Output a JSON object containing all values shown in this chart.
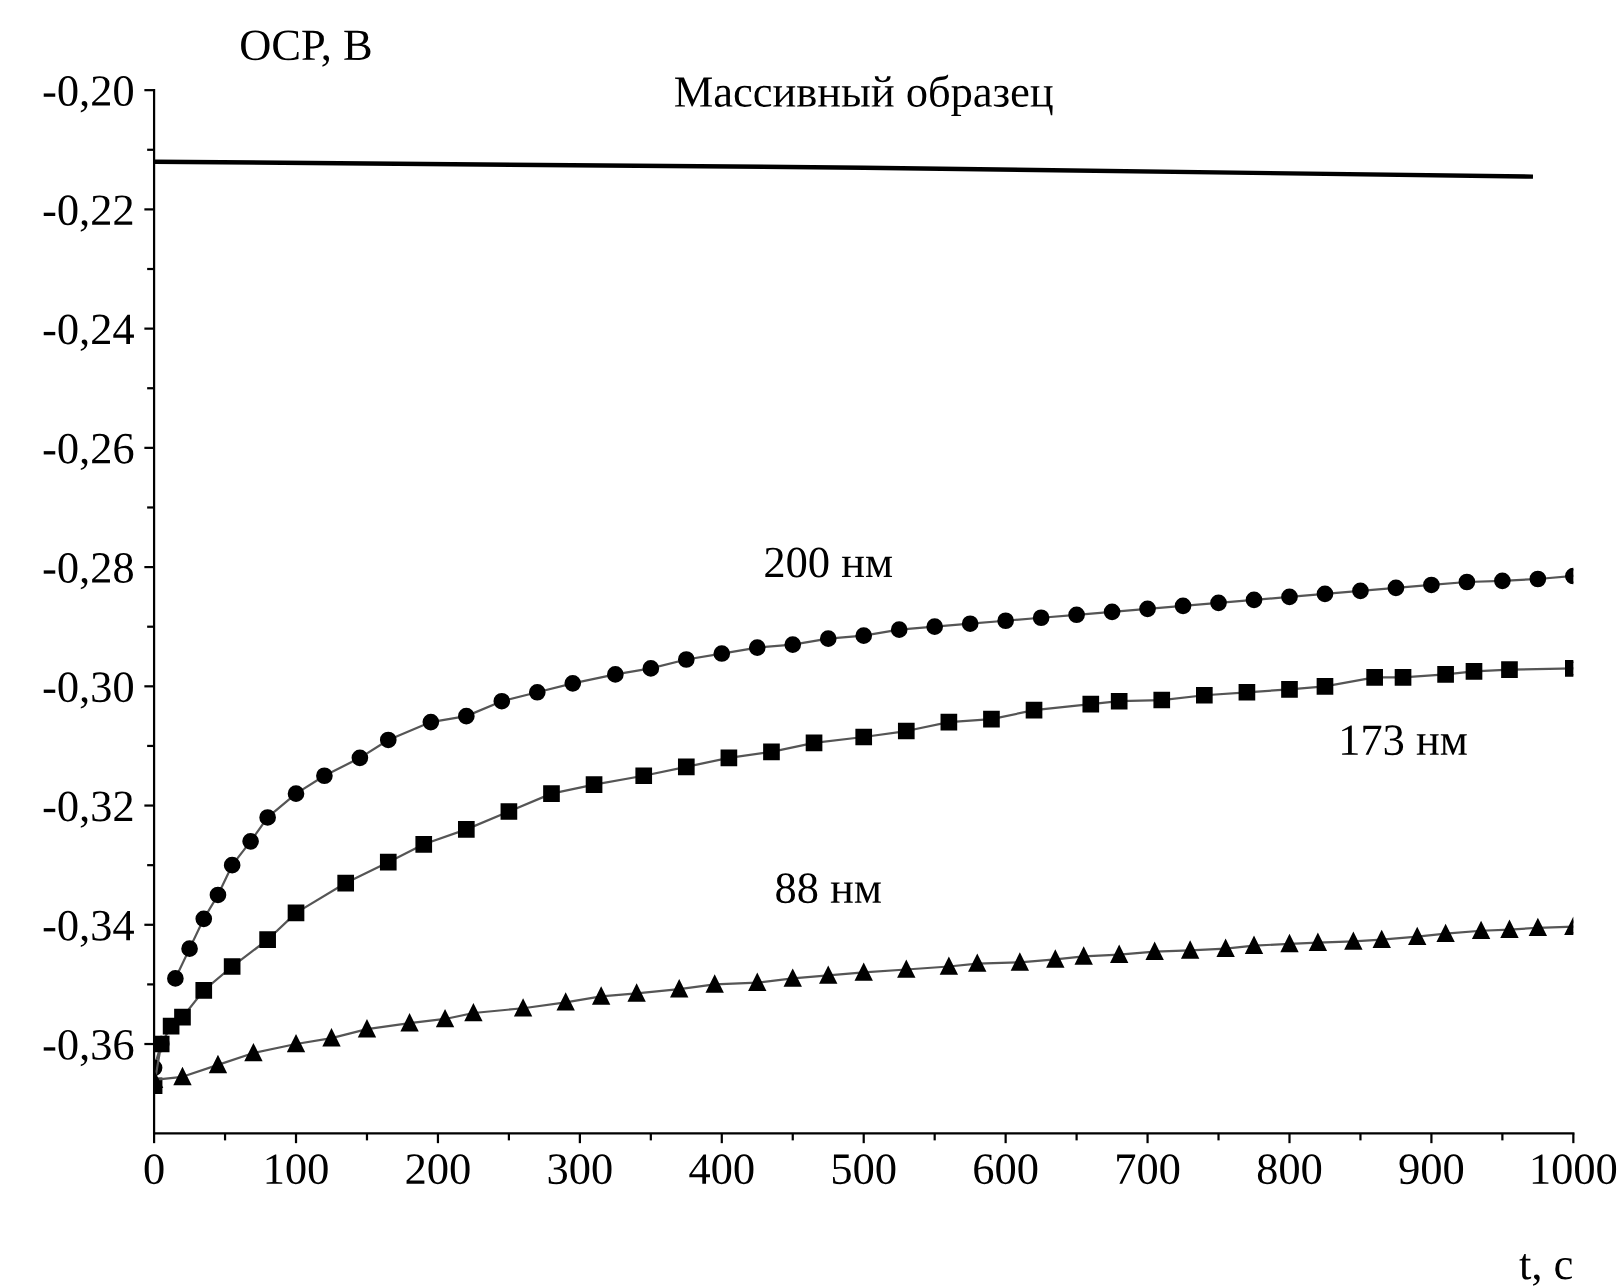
{
  "chart_data": {
    "type": "line",
    "xlabel": "t, с",
    "ylabel": "OCP, В",
    "xlim": [
      0,
      1000
    ],
    "ylim": [
      -0.375,
      -0.2
    ],
    "xticks": [
      0,
      {
        "value": 50,
        "label": null
      },
      100,
      {
        "value": 150,
        "label": null
      },
      200,
      {
        "value": 250,
        "label": null
      },
      300,
      {
        "value": 350,
        "label": null
      },
      400,
      {
        "value": 450,
        "label": null
      },
      500,
      {
        "value": 550,
        "label": null
      },
      600,
      {
        "value": 650,
        "label": null
      },
      700,
      {
        "value": 750,
        "label": null
      },
      800,
      {
        "value": 850,
        "label": null
      },
      900,
      {
        "value": 950,
        "label": null
      },
      1000
    ],
    "yticks": [
      {
        "value": -0.36,
        "label": "-0,36"
      },
      {
        "value": -0.35,
        "label": null
      },
      {
        "value": -0.34,
        "label": "-0,34"
      },
      {
        "value": -0.33,
        "label": null
      },
      {
        "value": -0.32,
        "label": "-0,32"
      },
      {
        "value": -0.31,
        "label": null
      },
      {
        "value": -0.3,
        "label": "-0,30"
      },
      {
        "value": -0.29,
        "label": null
      },
      {
        "value": -0.28,
        "label": "-0,28"
      },
      {
        "value": -0.27,
        "label": null
      },
      {
        "value": -0.26,
        "label": "-0,26"
      },
      {
        "value": -0.25,
        "label": null
      },
      {
        "value": -0.24,
        "label": "-0,24"
      },
      {
        "value": -0.23,
        "label": null
      },
      {
        "value": -0.22,
        "label": "-0,22"
      },
      {
        "value": -0.21,
        "label": null
      },
      {
        "value": -0.2,
        "label": "-0,20"
      }
    ],
    "grid": false,
    "series": [
      {
        "name": "Массивный образец",
        "color": "#000000",
        "marker": "none",
        "x": [
          0,
          500,
          970
        ],
        "values": [
          -0.212,
          -0.213,
          -0.2145
        ]
      },
      {
        "name": "200 нм",
        "color": "#000000",
        "marker": "circle",
        "x": [
          0,
          5,
          10,
          15,
          25,
          35,
          45,
          55,
          68,
          80,
          100,
          120,
          145,
          165,
          195,
          220,
          245,
          270,
          295,
          325,
          350,
          375,
          400,
          425,
          450,
          475,
          500,
          525,
          550,
          575,
          600,
          625,
          650,
          675,
          700,
          725,
          750,
          775,
          800,
          825,
          850,
          875,
          900,
          925,
          950,
          975,
          1000
        ],
        "values": [
          -0.364,
          -0.36,
          null,
          -0.349,
          -0.344,
          -0.339,
          -0.335,
          -0.33,
          -0.326,
          -0.322,
          -0.318,
          -0.315,
          -0.312,
          -0.309,
          -0.306,
          -0.305,
          -0.3025,
          -0.301,
          -0.2995,
          -0.298,
          -0.297,
          -0.2955,
          -0.2945,
          -0.2935,
          -0.293,
          -0.292,
          -0.2915,
          -0.2905,
          -0.29,
          -0.2895,
          -0.289,
          -0.2885,
          -0.288,
          -0.2875,
          -0.287,
          -0.2865,
          -0.286,
          -0.2855,
          -0.285,
          -0.2845,
          -0.284,
          -0.2835,
          -0.283,
          -0.2825,
          -0.2823,
          -0.282,
          -0.2815
        ]
      },
      {
        "name": "173 нм",
        "color": "#000000",
        "marker": "square",
        "x": [
          0,
          5,
          12,
          20,
          35,
          55,
          80,
          100,
          135,
          165,
          190,
          220,
          250,
          280,
          310,
          345,
          375,
          405,
          435,
          465,
          500,
          530,
          560,
          590,
          620,
          660,
          680,
          710,
          740,
          770,
          800,
          825,
          860,
          880,
          910,
          930,
          955,
          1000
        ],
        "values": [
          -0.367,
          -0.36,
          -0.357,
          -0.3555,
          -0.351,
          -0.347,
          -0.3425,
          -0.338,
          -0.333,
          -0.3295,
          -0.3265,
          -0.324,
          -0.321,
          -0.318,
          -0.3165,
          -0.315,
          -0.3135,
          -0.312,
          -0.311,
          -0.3095,
          -0.3085,
          -0.3075,
          -0.306,
          -0.3055,
          -0.304,
          -0.303,
          -0.3025,
          -0.3023,
          -0.3015,
          -0.301,
          -0.3005,
          -0.3,
          -0.2985,
          -0.2985,
          -0.298,
          -0.2975,
          -0.2972,
          -0.297
        ]
      },
      {
        "name": "88 нм",
        "color": "#000000",
        "marker": "triangle",
        "x": [
          0,
          20,
          45,
          70,
          100,
          125,
          150,
          180,
          205,
          225,
          260,
          290,
          315,
          340,
          370,
          395,
          425,
          450,
          475,
          500,
          530,
          560,
          580,
          610,
          635,
          655,
          680,
          705,
          730,
          755,
          775,
          800,
          820,
          845,
          865,
          890,
          910,
          935,
          955,
          975,
          1000
        ],
        "values": [
          -0.366,
          -0.3655,
          -0.3635,
          -0.3615,
          -0.36,
          -0.359,
          -0.3575,
          -0.3565,
          -0.3558,
          -0.3548,
          -0.354,
          -0.353,
          -0.352,
          -0.3515,
          -0.3508,
          -0.35,
          -0.3497,
          -0.349,
          -0.3485,
          -0.348,
          -0.3475,
          -0.347,
          -0.3465,
          -0.3463,
          -0.3458,
          -0.3453,
          -0.345,
          -0.3445,
          -0.3443,
          -0.344,
          -0.3435,
          -0.3432,
          -0.343,
          -0.3428,
          -0.3425,
          -0.342,
          -0.3415,
          -0.341,
          -0.3408,
          -0.3405,
          -0.3403
        ]
      }
    ]
  }
}
